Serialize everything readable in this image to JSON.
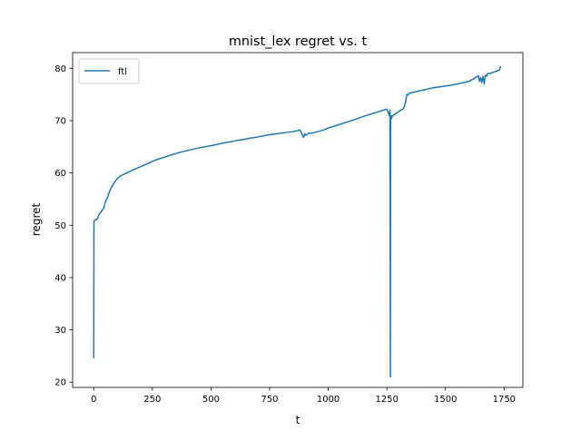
{
  "chart_data": {
    "type": "line",
    "title": "mnist_lex regret vs. t",
    "xlabel": "t",
    "ylabel": "regret",
    "xlim": [
      -90,
      1830
    ],
    "ylim": [
      19,
      83
    ],
    "xticks": [
      0,
      250,
      500,
      750,
      1000,
      1250,
      1500,
      1750
    ],
    "yticks": [
      20,
      30,
      40,
      50,
      60,
      70,
      80
    ],
    "grid": false,
    "legend_position": "top-left",
    "series": [
      {
        "name": "ftl",
        "color": "#1f77b4",
        "x": [
          0,
          1,
          3,
          8,
          15,
          22,
          30,
          38,
          42,
          50,
          55,
          58,
          62,
          68,
          75,
          85,
          95,
          110,
          130,
          150,
          175,
          200,
          220,
          240,
          260,
          300,
          350,
          400,
          450,
          500,
          550,
          600,
          650,
          700,
          750,
          800,
          850,
          880,
          895,
          900,
          905,
          915,
          930,
          980,
          1000,
          1050,
          1100,
          1150,
          1200,
          1250,
          1260,
          1263,
          1265,
          1266,
          1267,
          1268,
          1270,
          1272,
          1275,
          1280,
          1290,
          1300,
          1310,
          1320,
          1325,
          1330,
          1335,
          1340,
          1345,
          1350,
          1400,
          1450,
          1500,
          1550,
          1600,
          1620,
          1630,
          1640,
          1645,
          1650,
          1655,
          1660,
          1665,
          1670,
          1675,
          1680,
          1690,
          1700,
          1720,
          1730,
          1735
        ],
        "y": [
          24.7,
          50.5,
          51.0,
          51.0,
          51.2,
          52.0,
          52.5,
          53.0,
          53.2,
          54.5,
          55.0,
          55.2,
          55.8,
          56.5,
          57.2,
          58.0,
          58.6,
          59.3,
          59.8,
          60.2,
          60.7,
          61.2,
          61.6,
          62.0,
          62.4,
          63.0,
          63.7,
          64.3,
          64.8,
          65.2,
          65.7,
          66.1,
          66.5,
          66.9,
          67.3,
          67.6,
          67.9,
          68.2,
          66.8,
          67.5,
          67.2,
          67.6,
          67.6,
          68.2,
          68.6,
          69.3,
          70.0,
          70.8,
          71.5,
          72.2,
          71.0,
          72.0,
          21.0,
          71.0,
          70.2,
          71.0,
          70.4,
          70.8,
          70.9,
          71.1,
          71.4,
          71.7,
          72.0,
          72.3,
          72.8,
          73.5,
          75.0,
          74.9,
          75.2,
          75.3,
          75.8,
          76.3,
          76.6,
          77.0,
          77.5,
          78.0,
          78.3,
          78.6,
          77.5,
          78.2,
          77.3,
          78.5,
          77.0,
          78.7,
          78.5,
          79.0,
          79.0,
          79.2,
          79.5,
          79.7,
          80.3
        ]
      }
    ]
  }
}
